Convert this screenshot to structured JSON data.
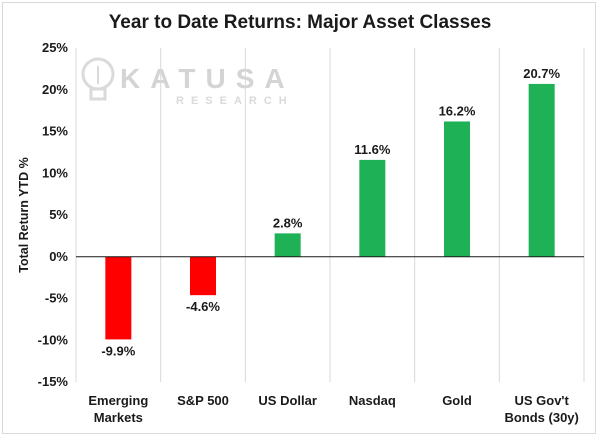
{
  "chart_data": {
    "type": "bar",
    "title": "Year to Date Returns: Major Asset Classes",
    "ylabel": "Total Return YTD %",
    "xlabel": "",
    "ylim": [
      -15,
      25
    ],
    "yticks": [
      25,
      20,
      15,
      10,
      5,
      0,
      -5,
      -10,
      -15
    ],
    "ytick_labels": [
      "25%",
      "20%",
      "15%",
      "10%",
      "5%",
      "0%",
      "-5%",
      "-10%",
      "-15%"
    ],
    "categories": [
      [
        "Emerging",
        "Markets"
      ],
      [
        "S&P 500"
      ],
      [
        "US Dollar"
      ],
      [
        "Nasdaq"
      ],
      [
        "Gold"
      ],
      [
        "US Gov't",
        "Bonds (30y)"
      ]
    ],
    "values": [
      -9.9,
      -4.6,
      2.8,
      11.6,
      16.2,
      20.7
    ],
    "data_labels": [
      "-9.9%",
      "-4.6%",
      "2.8%",
      "11.6%",
      "16.2%",
      "20.7%"
    ],
    "colors": {
      "positive": "#1fb155",
      "negative": "#ff0000",
      "grid": "#d9d9d9",
      "axis": "#1a1a1a"
    },
    "grid": "vertical category separators",
    "legend": "none"
  },
  "watermark": {
    "brand": "KATUSA",
    "sub": "RESEARCH",
    "icon": "lightbulb-icon"
  }
}
